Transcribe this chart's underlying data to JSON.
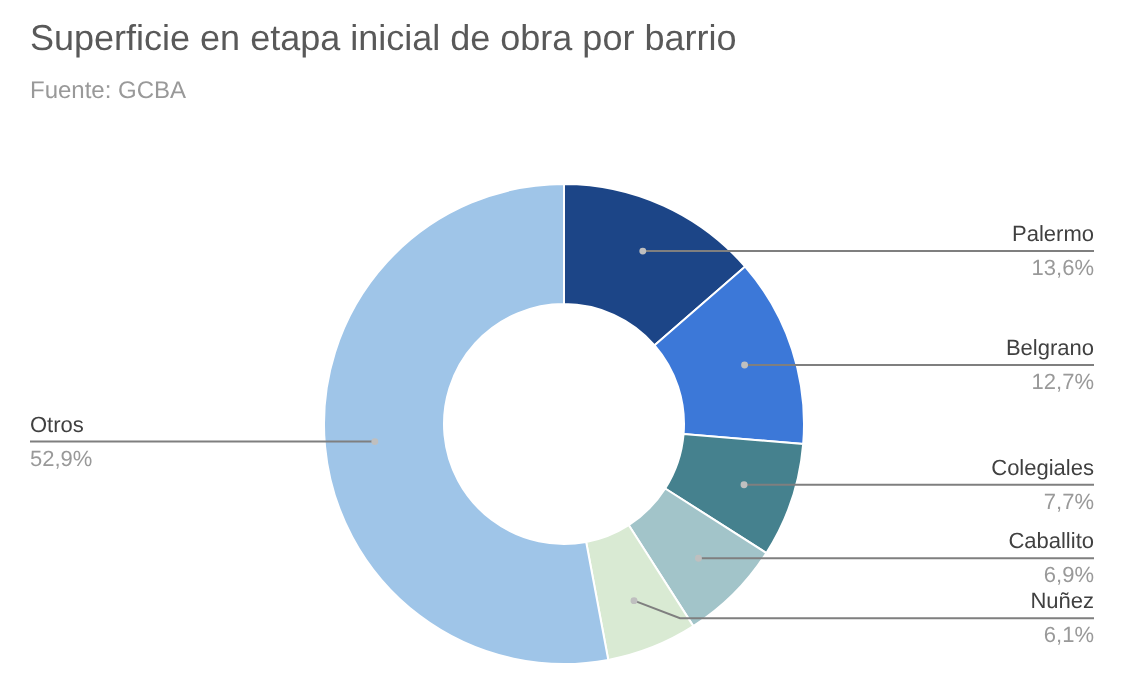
{
  "chart_data": {
    "type": "donut",
    "title": "Superficie en etapa inicial de obra por barrio",
    "subtitle": "Fuente: GCBA",
    "categories": [
      "Palermo",
      "Belgrano",
      "Colegiales",
      "Caballito",
      "Nuñez",
      "Otros"
    ],
    "values": [
      13.6,
      12.7,
      7.7,
      6.9,
      6.1,
      52.9
    ],
    "value_labels": [
      "13,6%",
      "12,7%",
      "7,7%",
      "6,9%",
      "6,1%",
      "52,9%"
    ],
    "colors": [
      "#1c4587",
      "#3c78d8",
      "#45818e",
      "#a2c4c9",
      "#d9ead3",
      "#9fc5e8"
    ]
  }
}
